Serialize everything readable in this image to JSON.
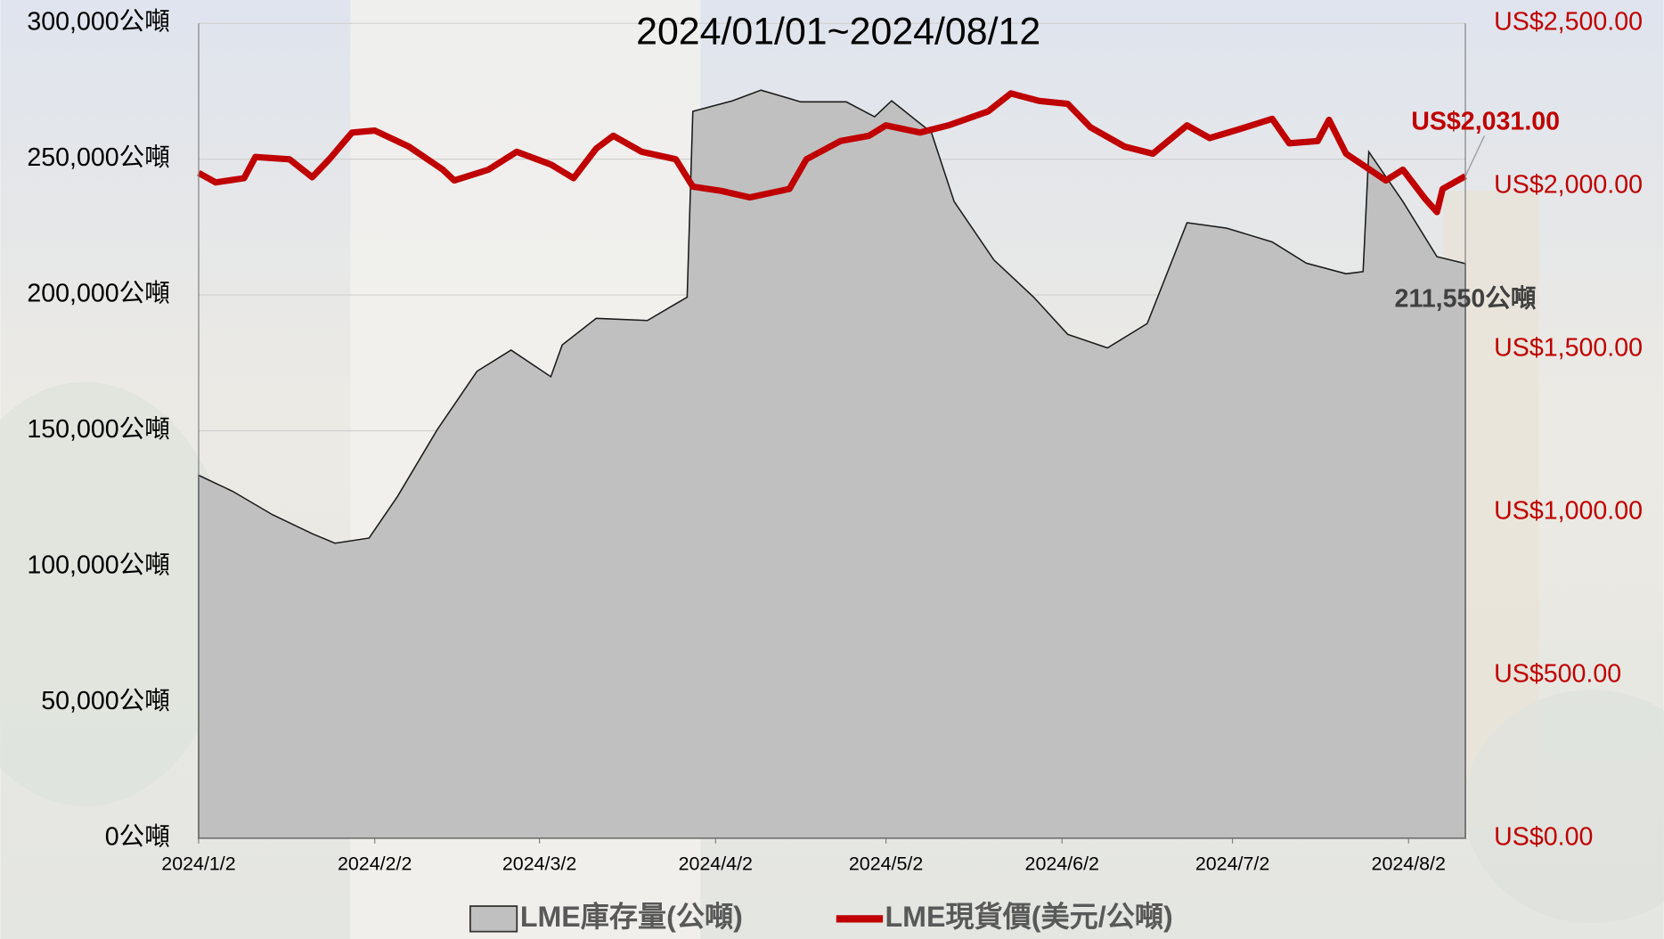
{
  "chart_data": {
    "type": "area-line",
    "title": "2024/01/01~2024/08/12",
    "xlim": [
      "2024/1/2",
      "2024/8/12"
    ],
    "xticks": [
      "2024/1/2",
      "2024/2/2",
      "2024/3/2",
      "2024/4/2",
      "2024/5/2",
      "2024/6/2",
      "2024/7/2",
      "2024/8/2"
    ],
    "ylim": [
      0,
      300000
    ],
    "yticks": [
      {
        "value": 0,
        "label": "0公噸"
      },
      {
        "value": 50000,
        "label": "50,000公噸"
      },
      {
        "value": 100000,
        "label": "100,000公噸"
      },
      {
        "value": 150000,
        "label": "150,000公噸"
      },
      {
        "value": 200000,
        "label": "200,000公噸"
      },
      {
        "value": 250000,
        "label": "250,000公噸"
      },
      {
        "value": 300000,
        "label": "300,000公噸"
      }
    ],
    "y2lim": [
      0,
      2500
    ],
    "y2ticks": [
      {
        "value": 0,
        "label": "US$0.00"
      },
      {
        "value": 500,
        "label": "US$500.00"
      },
      {
        "value": 1000,
        "label": "US$1,000.00"
      },
      {
        "value": 1500,
        "label": "US$1,500.00"
      },
      {
        "value": 2000,
        "label": "US$2,000.00"
      },
      {
        "value": 2500,
        "label": "US$2,500.00"
      }
    ],
    "grid": true,
    "series": [
      {
        "name": "LME庫存量(公噸)",
        "kind": "area",
        "color": "#c0c0c0",
        "x": [
          "2024/1/2",
          "2024/1/8",
          "2024/1/15",
          "2024/1/22",
          "2024/1/26",
          "2024/2/1",
          "2024/2/6",
          "2024/2/13",
          "2024/2/20",
          "2024/2/26",
          "2024/3/4",
          "2024/3/6",
          "2024/3/12",
          "2024/3/21",
          "2024/3/28",
          "2024/3/29",
          "2024/4/5",
          "2024/4/10",
          "2024/4/17",
          "2024/4/25",
          "2024/4/30",
          "2024/5/3",
          "2024/5/10",
          "2024/5/14",
          "2024/5/21",
          "2024/5/28",
          "2024/6/3",
          "2024/6/10",
          "2024/6/17",
          "2024/6/24",
          "2024/7/1",
          "2024/7/9",
          "2024/7/15",
          "2024/7/22",
          "2024/7/25",
          "2024/7/26",
          "2024/8/1",
          "2024/8/7",
          "2024/8/12"
        ],
        "values": [
          133600,
          127700,
          119100,
          112100,
          108600,
          110500,
          125800,
          150400,
          171900,
          179700,
          169900,
          181600,
          191400,
          190600,
          199200,
          267600,
          271500,
          275400,
          271100,
          271100,
          265600,
          271500,
          259800,
          234400,
          212900,
          199200,
          185500,
          180500,
          189500,
          226600,
          224600,
          219500,
          211700,
          207800,
          208600,
          252700,
          234400,
          214100,
          211550
        ],
        "end_label": "211,550公噸"
      },
      {
        "name": "LME現貨價(美元/公噸)",
        "kind": "line",
        "axis": "y2",
        "color": "#c00000",
        "x": [
          "2024/1/2",
          "2024/1/5",
          "2024/1/10",
          "2024/1/12",
          "2024/1/18",
          "2024/1/22",
          "2024/1/25",
          "2024/1/29",
          "2024/2/2",
          "2024/2/8",
          "2024/2/14",
          "2024/2/16",
          "2024/2/22",
          "2024/2/27",
          "2024/3/4",
          "2024/3/8",
          "2024/3/12",
          "2024/3/15",
          "2024/3/20",
          "2024/3/26",
          "2024/3/29",
          "2024/4/3",
          "2024/4/8",
          "2024/4/15",
          "2024/4/18",
          "2024/4/24",
          "2024/4/29",
          "2024/5/2",
          "2024/5/8",
          "2024/5/13",
          "2024/5/20",
          "2024/5/24",
          "2024/5/29",
          "2024/6/3",
          "2024/6/7",
          "2024/6/13",
          "2024/6/18",
          "2024/6/24",
          "2024/6/28",
          "2024/7/3",
          "2024/7/9",
          "2024/7/12",
          "2024/7/17",
          "2024/7/19",
          "2024/7/22",
          "2024/7/29",
          "2024/8/1",
          "2024/8/5",
          "2024/8/7",
          "2024/8/8",
          "2024/8/12"
        ],
        "values": [
          2041,
          2012,
          2025,
          2090,
          2083,
          2028,
          2083,
          2165,
          2171,
          2122,
          2051,
          2018,
          2051,
          2106,
          2067,
          2025,
          2116,
          2155,
          2106,
          2083,
          1999,
          1986,
          1966,
          1992,
          2083,
          2139,
          2155,
          2187,
          2165,
          2187,
          2230,
          2285,
          2262,
          2253,
          2181,
          2122,
          2100,
          2187,
          2148,
          2174,
          2207,
          2132,
          2139,
          2204,
          2100,
          2018,
          2051,
          1960,
          1921,
          1992,
          2031
        ],
        "end_label": "US$2,031.00"
      }
    ]
  }
}
